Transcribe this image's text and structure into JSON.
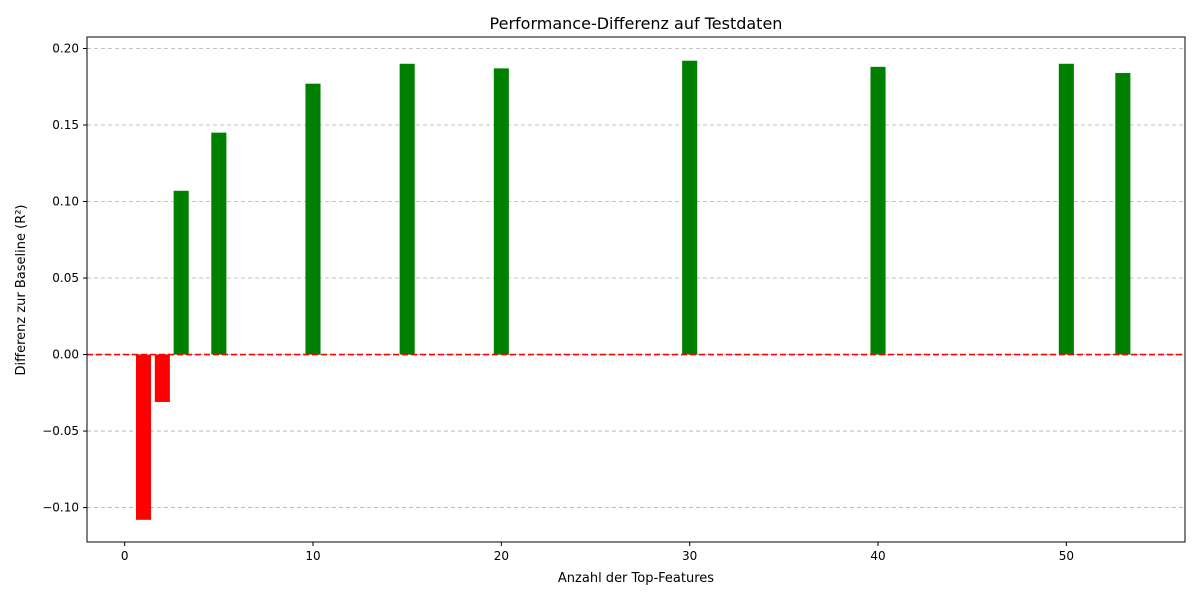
{
  "chart_data": {
    "type": "bar",
    "title": "Performance-Differenz auf Testdaten",
    "xlabel": "Anzahl der Top-Features",
    "ylabel": "Differenz zur Baseline (R²)",
    "xlim": [
      -2,
      56.3
    ],
    "ylim": [
      -0.1225,
      0.2075
    ],
    "x_ticks": [
      0,
      10,
      20,
      30,
      40,
      50
    ],
    "x_tick_labels": [
      "0",
      "10",
      "20",
      "30",
      "40",
      "50"
    ],
    "y_ticks": [
      -0.1,
      -0.05,
      0.0,
      0.05,
      0.1,
      0.15,
      0.2
    ],
    "y_tick_labels": [
      "−0.10",
      "−0.05",
      "0.00",
      "0.05",
      "0.10",
      "0.15",
      "0.20"
    ],
    "grid": {
      "y": true,
      "x": false,
      "style": "dashed"
    },
    "bar_width": 0.8,
    "positive_color": "#008000",
    "negative_color": "#ff0000",
    "reference_line": {
      "y": 0,
      "color": "#ff0000",
      "style": "dashed"
    },
    "points": [
      {
        "x": 1,
        "y": -0.108
      },
      {
        "x": 2,
        "y": -0.031
      },
      {
        "x": 3,
        "y": 0.107
      },
      {
        "x": 5,
        "y": 0.145
      },
      {
        "x": 10,
        "y": 0.177
      },
      {
        "x": 15,
        "y": 0.19
      },
      {
        "x": 20,
        "y": 0.187
      },
      {
        "x": 30,
        "y": 0.192
      },
      {
        "x": 40,
        "y": 0.188
      },
      {
        "x": 50,
        "y": 0.19
      },
      {
        "x": 53,
        "y": 0.184
      }
    ]
  }
}
